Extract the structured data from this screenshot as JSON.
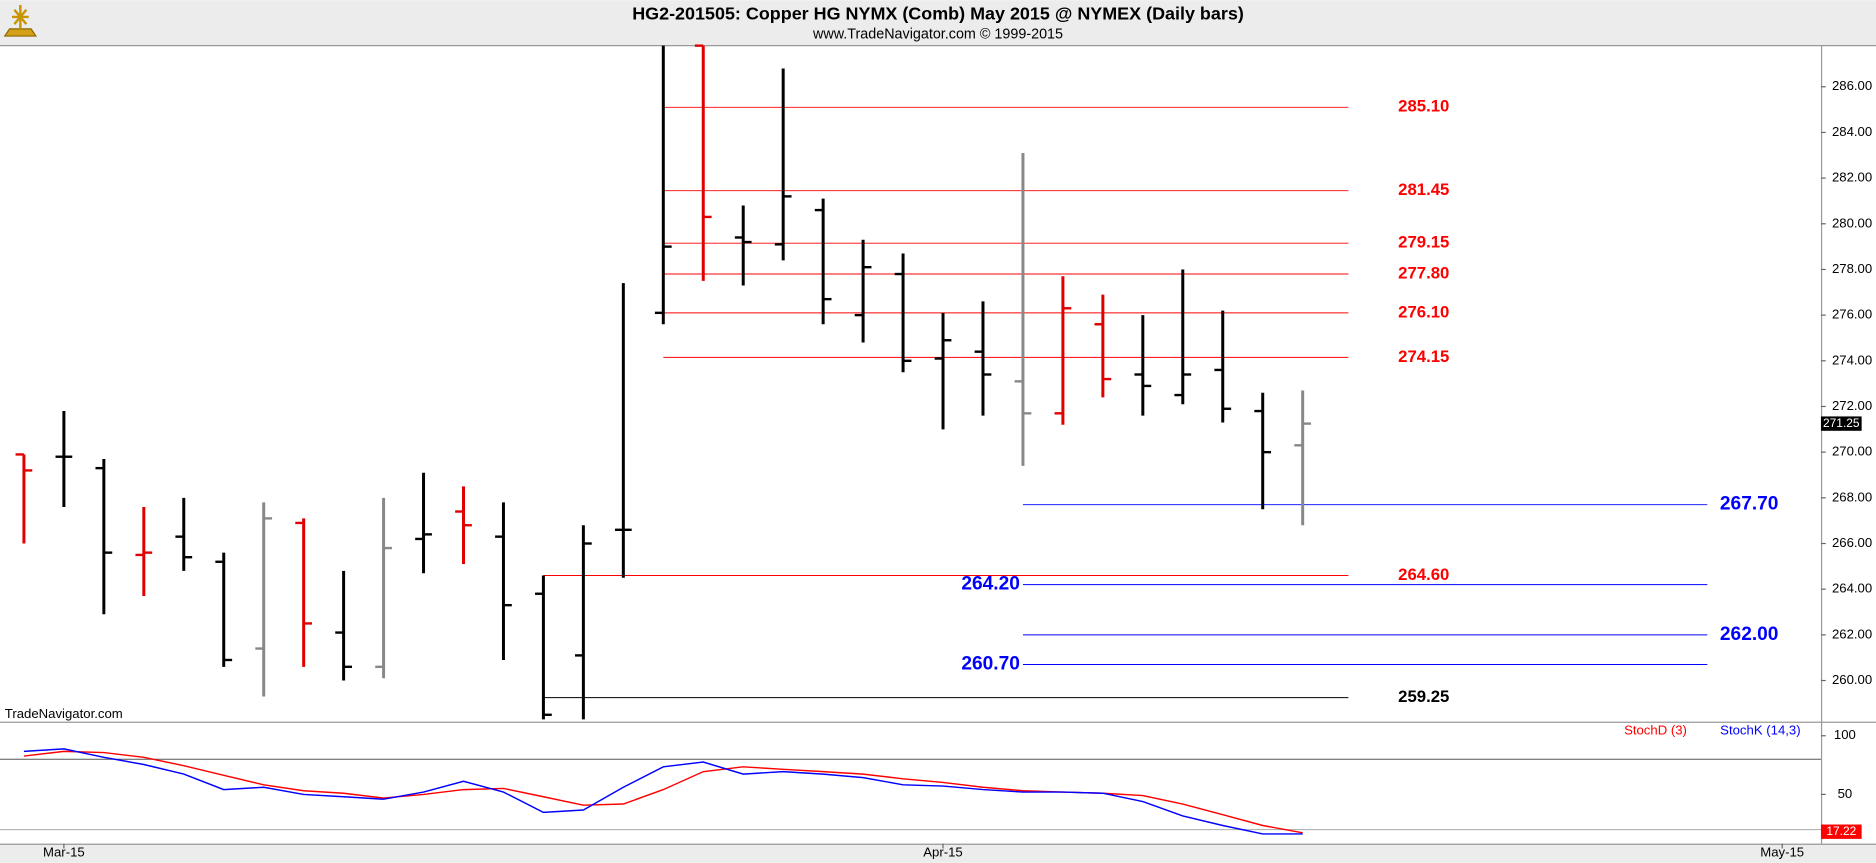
{
  "chart_data": [
    {
      "type": "ohlc",
      "title": "HG2-201505:  Copper HG NYMX (Comb) May 2015 @ NYMEX  (Daily bars)",
      "subtitle": "www.TradeNavigator.com © 1999-2015",
      "watermark": "TradeNavigator.com",
      "categories": [
        null,
        null,
        null,
        null,
        null,
        null,
        null,
        null,
        null,
        null,
        null,
        null,
        null,
        null,
        null,
        null,
        null,
        null,
        null,
        null,
        null,
        null,
        null,
        null,
        null,
        null,
        null,
        null,
        null,
        null,
        null,
        null,
        null
      ],
      "open": [
        269.9,
        269.8,
        269.3,
        265.5,
        266.3,
        265.2,
        261.4,
        266.9,
        262.1,
        260.6,
        266.2,
        267.4,
        266.3,
        263.8,
        261.1,
        266.6,
        276.1,
        287.8,
        279.4,
        279.1,
        280.6,
        276.0,
        277.8,
        274.1,
        274.4,
        273.1,
        271.7,
        275.6,
        273.4,
        272.5,
        273.6,
        271.8,
        270.3
      ],
      "high": [
        269.9,
        271.8,
        269.7,
        267.6,
        268.0,
        265.6,
        267.8,
        267.1,
        264.8,
        268.0,
        269.1,
        268.5,
        267.8,
        264.6,
        266.8,
        277.4,
        287.8,
        287.8,
        280.8,
        286.8,
        281.1,
        279.3,
        278.7,
        276.1,
        276.6,
        283.1,
        277.7,
        276.9,
        276.0,
        278.0,
        276.2,
        272.6,
        272.7
      ],
      "low": [
        266.0,
        267.6,
        262.9,
        263.7,
        264.8,
        260.6,
        259.3,
        260.6,
        260.0,
        260.1,
        264.7,
        265.1,
        260.9,
        258.3,
        258.3,
        264.5,
        275.6,
        277.5,
        277.3,
        278.4,
        275.6,
        274.8,
        273.5,
        271.0,
        271.6,
        269.4,
        271.2,
        272.4,
        271.6,
        272.1,
        271.3,
        267.5,
        266.8
      ],
      "close": [
        269.2,
        269.8,
        265.6,
        265.6,
        265.4,
        260.9,
        267.1,
        262.5,
        260.6,
        265.8,
        266.4,
        266.8,
        263.3,
        258.5,
        266.0,
        266.6,
        279.0,
        280.3,
        279.2,
        281.2,
        276.7,
        278.1,
        274.0,
        274.9,
        273.4,
        271.7,
        276.3,
        273.2,
        272.9,
        273.4,
        271.9,
        270.0,
        271.25
      ],
      "colors": [
        "#e00000",
        "#000000",
        "#000000",
        "#e00000",
        "#000000",
        "#000000",
        "#888888",
        "#e00000",
        "#000000",
        "#888888",
        "#000000",
        "#e00000",
        "#000000",
        "#000000",
        "#000000",
        "#000000",
        "#000000",
        "#e00000",
        "#000000",
        "#000000",
        "#000000",
        "#000000",
        "#000000",
        "#000000",
        "#000000",
        "#888888",
        "#e00000",
        "#e00000",
        "#000000",
        "#000000",
        "#000000",
        "#000000",
        "#888888"
      ],
      "last_label": "271.25",
      "levels": [
        {
          "value": 285.1,
          "label": "285.10",
          "color": "#ff0000",
          "from": 16
        },
        {
          "value": 281.45,
          "label": "281.45",
          "color": "#ff0000",
          "from": 16
        },
        {
          "value": 279.15,
          "label": "279.15",
          "color": "#ff0000",
          "from": 16
        },
        {
          "value": 277.8,
          "label": "277.80",
          "color": "#ff0000",
          "from": 16
        },
        {
          "value": 276.1,
          "label": "276.10",
          "color": "#ff0000",
          "from": 16
        },
        {
          "value": 274.15,
          "label": "274.15",
          "color": "#ff0000",
          "from": 16
        },
        {
          "value": 264.6,
          "label": "264.60",
          "color": "#ff0000",
          "from": 13
        },
        {
          "value": 259.25,
          "label": "259.25",
          "color": "#000000",
          "from": 13
        },
        {
          "value": 267.7,
          "label": "267.70",
          "color": "#0000ff",
          "from": 25,
          "label_side": "right"
        },
        {
          "value": 264.2,
          "label": "264.20",
          "color": "#0000ff",
          "from": 25,
          "label_side": "left"
        },
        {
          "value": 262.0,
          "label": "262.00",
          "color": "#0000ff",
          "from": 25,
          "label_side": "right"
        },
        {
          "value": 260.7,
          "label": "260.70",
          "color": "#0000ff",
          "from": 25,
          "label_side": "left"
        }
      ],
      "ylim": [
        258.2,
        287.8
      ],
      "yticks": [
        {
          "value": 260,
          "label": "260.00"
        },
        {
          "value": 262,
          "label": "262.00"
        },
        {
          "value": 264,
          "label": "264.00"
        },
        {
          "value": 266,
          "label": "266.00"
        },
        {
          "value": 268,
          "label": "268.00"
        },
        {
          "value": 270,
          "label": "270.00"
        },
        {
          "value": 272,
          "label": "272.00"
        },
        {
          "value": 274,
          "label": "274.00"
        },
        {
          "value": 276,
          "label": "276.00"
        },
        {
          "value": 278,
          "label": "278.00"
        },
        {
          "value": 280,
          "label": "280.00"
        },
        {
          "value": 282,
          "label": "282.00"
        },
        {
          "value": 284,
          "label": "284.00"
        },
        {
          "value": 286,
          "label": "286.00"
        }
      ]
    },
    {
      "type": "line",
      "series": [
        {
          "name": "StochD (3)",
          "color": "#ff0000",
          "last_label": "17.22",
          "values": [
            82.7,
            86.7,
            85.7,
            81.6,
            74.5,
            66.3,
            58.2,
            53.1,
            51.0,
            46.9,
            50.0,
            54.1,
            55.1,
            48.0,
            40.8,
            41.8,
            54.1,
            69.4,
            73.5,
            71.4,
            69.4,
            67.3,
            63.3,
            60.2,
            56.1,
            53.1,
            52.0,
            51.0,
            49.0,
            41.8,
            32.7,
            23.5,
            17.22
          ]
        },
        {
          "name": "StochK (14,3)",
          "color": "#0000ff",
          "values": [
            86.7,
            88.8,
            81.6,
            75.5,
            67.3,
            54.1,
            56.1,
            50.0,
            48.0,
            45.9,
            52.0,
            61.2,
            52.0,
            34.7,
            36.7,
            56.1,
            73.5,
            77.6,
            67.3,
            69.4,
            67.3,
            64.3,
            58.2,
            57.1,
            54.1,
            52.0,
            52.0,
            51.0,
            43.9,
            31.6,
            23.5,
            16.3,
            16.3
          ]
        }
      ],
      "reference_lines": [
        80,
        20
      ],
      "ylim": [
        8,
        110
      ],
      "yticks": [
        50,
        100
      ],
      "xticks": [
        {
          "value": 1,
          "label": "Mar-15"
        },
        {
          "value": 23,
          "label": "Apr-15"
        },
        {
          "value": 44,
          "label": "May-15"
        }
      ]
    }
  ]
}
